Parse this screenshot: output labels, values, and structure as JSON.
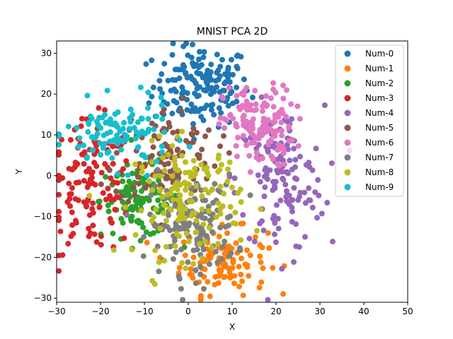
{
  "chart_data": {
    "type": "scatter",
    "title": "MNIST PCA 2D",
    "xlabel": "X",
    "ylabel": "Y",
    "xlim": [
      -30,
      50
    ],
    "ylim": [
      -31,
      33
    ],
    "xticks": [
      -30,
      -20,
      -10,
      0,
      10,
      20,
      30,
      40,
      50
    ],
    "yticks": [
      -30,
      -20,
      -10,
      0,
      10,
      20,
      30
    ],
    "grid": false,
    "legend_position": "top-right",
    "series": [
      {
        "name": "Num-0",
        "color": "#1f77b4",
        "center": [
          3,
          22
        ],
        "spread": [
          5.5,
          5
        ],
        "points_per_series": 160
      },
      {
        "name": "Num-1",
        "color": "#ff7f0e",
        "center": [
          8,
          -21
        ],
        "spread": [
          5,
          4
        ],
        "points_per_series": 110
      },
      {
        "name": "Num-2",
        "color": "#2ca02c",
        "center": [
          -11,
          -6
        ],
        "spread": [
          4.5,
          4.5
        ],
        "points_per_series": 110
      },
      {
        "name": "Num-3",
        "color": "#d62728",
        "center": [
          -22,
          -3
        ],
        "spread": [
          5,
          8
        ],
        "points_per_series": 130
      },
      {
        "name": "Num-4",
        "color": "#9467bd",
        "center": [
          21,
          -1
        ],
        "spread": [
          5,
          9
        ],
        "points_per_series": 140
      },
      {
        "name": "Num-5",
        "color": "#8c564b",
        "center": [
          -5,
          5
        ],
        "spread": [
          6,
          6
        ],
        "points_per_series": 110
      },
      {
        "name": "Num-6",
        "color": "#e377c2",
        "center": [
          16,
          12
        ],
        "spread": [
          4,
          5
        ],
        "points_per_series": 140
      },
      {
        "name": "Num-7",
        "color": "#7f7f7f",
        "center": [
          1,
          -12
        ],
        "spread": [
          5,
          6
        ],
        "points_per_series": 150
      },
      {
        "name": "Num-8",
        "color": "#bcbd22",
        "center": [
          0,
          -6
        ],
        "spread": [
          6,
          7
        ],
        "points_per_series": 150
      },
      {
        "name": "Num-9",
        "color": "#17becf",
        "center": [
          -16,
          10
        ],
        "spread": [
          6,
          4
        ],
        "points_per_series": 110
      }
    ]
  }
}
